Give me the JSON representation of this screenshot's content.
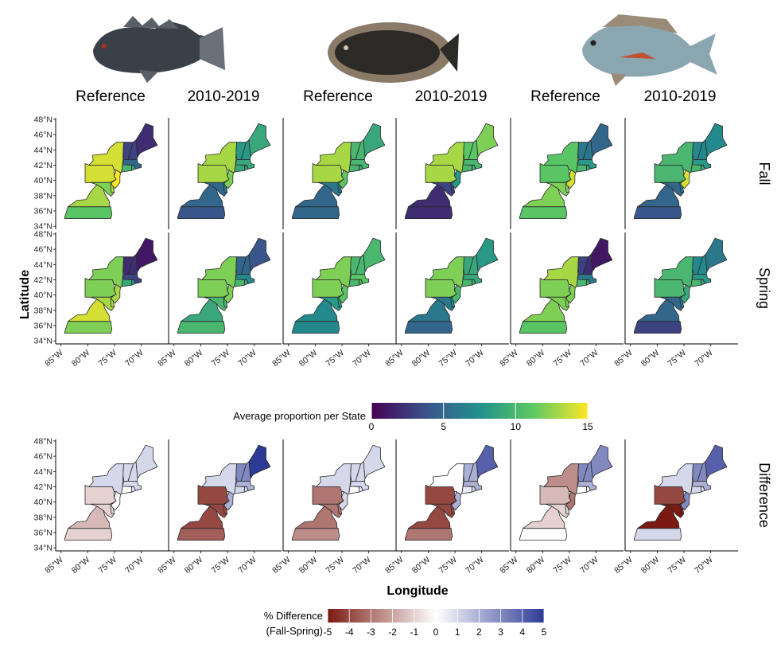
{
  "columns": [
    "Reference",
    "2010-2019",
    "Reference",
    "2010-2019",
    "Reference",
    "2010-2019"
  ],
  "species": [
    {
      "icon": "black-sea-bass-icon",
      "body_color": "#3a4048",
      "fin_color": "#6a7078"
    },
    {
      "icon": "summer-flounder-icon",
      "body_color": "#2c2a26",
      "fin_color": "#8a7a68"
    },
    {
      "icon": "scup-icon",
      "body_color": "#8aa6b0",
      "fin_color": "#9a8a78"
    }
  ],
  "rows": [
    "Fall",
    "Spring",
    "Difference"
  ],
  "axes": {
    "ylabel": "Latitude",
    "xlabel": "Longitude",
    "yticks": [
      "48°N",
      "46°N",
      "44°N",
      "42°N",
      "40°N",
      "38°N",
      "36°N",
      "34°N"
    ],
    "xticks": [
      "85°W",
      "80°W",
      "75°W",
      "70°W"
    ]
  },
  "legend_proportion": {
    "title": "Average proportion per State",
    "ticks": [
      "0",
      "5",
      "10",
      "15"
    ],
    "range": [
      0,
      15
    ],
    "palette": "viridis"
  },
  "legend_difference": {
    "title_line1": "% Difference",
    "title_line2": "(Fall-Spring)",
    "ticks": [
      "-5",
      "-4",
      "-3",
      "-2",
      "-1",
      "0",
      "1",
      "2",
      "3",
      "4",
      "5"
    ],
    "range": [
      -5,
      5
    ],
    "low_color": "#7a1a12",
    "mid_color": "#ffffff",
    "high_color": "#2d3a96"
  },
  "chart_data": {
    "type": "heatmap",
    "states": [
      "ME",
      "NH",
      "VT",
      "MA",
      "RI",
      "CT",
      "NY",
      "NJ",
      "PA",
      "DE",
      "MD",
      "VA",
      "NC"
    ],
    "fall": [
      {
        "ME": 2,
        "NH": 3,
        "VT": 3,
        "MA": 5,
        "RI": 9,
        "CT": 10,
        "NY": 14,
        "NJ": 15,
        "PA": 14,
        "DE": 13,
        "MD": 12,
        "VA": 13,
        "NC": 11
      },
      {
        "ME": 9,
        "NH": 8,
        "VT": 8,
        "MA": 9,
        "RI": 8,
        "CT": 9,
        "NY": 13,
        "NJ": 12,
        "PA": 13,
        "DE": 6,
        "MD": 5,
        "VA": 5,
        "NC": 4
      },
      {
        "ME": 9,
        "NH": 10,
        "VT": 10,
        "MA": 10,
        "RI": 9,
        "CT": 10,
        "NY": 13,
        "NJ": 11,
        "PA": 13,
        "DE": 6,
        "MD": 6,
        "VA": 5,
        "NC": 5
      },
      {
        "ME": 12,
        "NH": 11,
        "VT": 11,
        "MA": 10,
        "RI": 9,
        "CT": 10,
        "NY": 13,
        "NJ": 8,
        "PA": 13,
        "DE": 3,
        "MD": 3,
        "VA": 2,
        "NC": 2
      },
      {
        "ME": 5,
        "NH": 6,
        "VT": 6,
        "MA": 8,
        "RI": 9,
        "CT": 10,
        "NY": 11,
        "NJ": 14,
        "PA": 11,
        "DE": 12,
        "MD": 12,
        "VA": 12,
        "NC": 11
      },
      {
        "ME": 7,
        "NH": 7,
        "VT": 7,
        "MA": 8,
        "RI": 9,
        "CT": 10,
        "NY": 10,
        "NJ": 14,
        "PA": 10,
        "DE": 6,
        "MD": 5,
        "VA": 5,
        "NC": 4
      }
    ],
    "spring": [
      {
        "ME": 1,
        "NH": 2,
        "VT": 2,
        "MA": 3,
        "RI": 8,
        "CT": 9,
        "NY": 12,
        "NJ": 13,
        "PA": 12,
        "DE": 13,
        "MD": 13,
        "VA": 14,
        "NC": 12
      },
      {
        "ME": 4,
        "NH": 5,
        "VT": 5,
        "MA": 7,
        "RI": 9,
        "CT": 10,
        "NY": 12,
        "NJ": 12,
        "PA": 12,
        "DE": 10,
        "MD": 10,
        "VA": 9,
        "NC": 10
      },
      {
        "ME": 10,
        "NH": 10,
        "VT": 10,
        "MA": 11,
        "RI": 10,
        "CT": 10,
        "NY": 12,
        "NJ": 11,
        "PA": 12,
        "DE": 8,
        "MD": 8,
        "VA": 7,
        "NC": 7
      },
      {
        "ME": 8,
        "NH": 9,
        "VT": 9,
        "MA": 9,
        "RI": 9,
        "CT": 10,
        "NY": 12,
        "NJ": 10,
        "PA": 12,
        "DE": 7,
        "MD": 6,
        "VA": 6,
        "NC": 5
      },
      {
        "ME": 1,
        "NH": 2,
        "VT": 3,
        "MA": 6,
        "RI": 9,
        "CT": 10,
        "NY": 13,
        "NJ": 12,
        "PA": 12,
        "DE": 12,
        "MD": 12,
        "VA": 12,
        "NC": 11
      },
      {
        "ME": 6,
        "NH": 7,
        "VT": 7,
        "MA": 8,
        "RI": 9,
        "CT": 10,
        "NY": 10,
        "NJ": 9,
        "PA": 10,
        "DE": 6,
        "MD": 5,
        "VA": 5,
        "NC": 3
      }
    ],
    "difference": [
      {
        "ME": 1,
        "NH": 1,
        "VT": 1,
        "MA": 1,
        "RI": 0.5,
        "CT": 0,
        "NY": 1,
        "NJ": 0,
        "PA": -1,
        "DE": -1,
        "MD": -1,
        "VA": -1.5,
        "NC": -1
      },
      {
        "ME": 5,
        "NH": 3,
        "VT": 3,
        "MA": 2,
        "RI": 1,
        "CT": 1,
        "NY": 1,
        "NJ": 2,
        "PA": -4,
        "DE": -4,
        "MD": -4,
        "VA": -4,
        "NC": -3.5
      },
      {
        "ME": 1,
        "NH": 1,
        "VT": 1,
        "MA": 1,
        "RI": 0.5,
        "CT": 0,
        "NY": 1,
        "NJ": 1,
        "PA": -3,
        "DE": -3,
        "MD": -3,
        "VA": -3,
        "NC": -2.5
      },
      {
        "ME": 4,
        "NH": 2,
        "VT": 2,
        "MA": 2,
        "RI": 1,
        "CT": 0.5,
        "NY": 0,
        "NJ": 2,
        "PA": -4,
        "DE": -4,
        "MD": -4,
        "VA": -4,
        "NC": -3
      },
      {
        "ME": 3,
        "NH": 3,
        "VT": 3,
        "MA": 2,
        "RI": 0,
        "CT": 0,
        "NY": -2.5,
        "NJ": -3,
        "PA": -1.5,
        "DE": -1,
        "MD": -1,
        "VA": -1,
        "NC": 0
      },
      {
        "ME": 4,
        "NH": 3,
        "VT": 3,
        "MA": 2,
        "RI": 1,
        "CT": 1,
        "NY": 1,
        "NJ": 3,
        "PA": -4,
        "DE": -5,
        "MD": -5,
        "VA": -5,
        "NC": 1
      }
    ]
  }
}
